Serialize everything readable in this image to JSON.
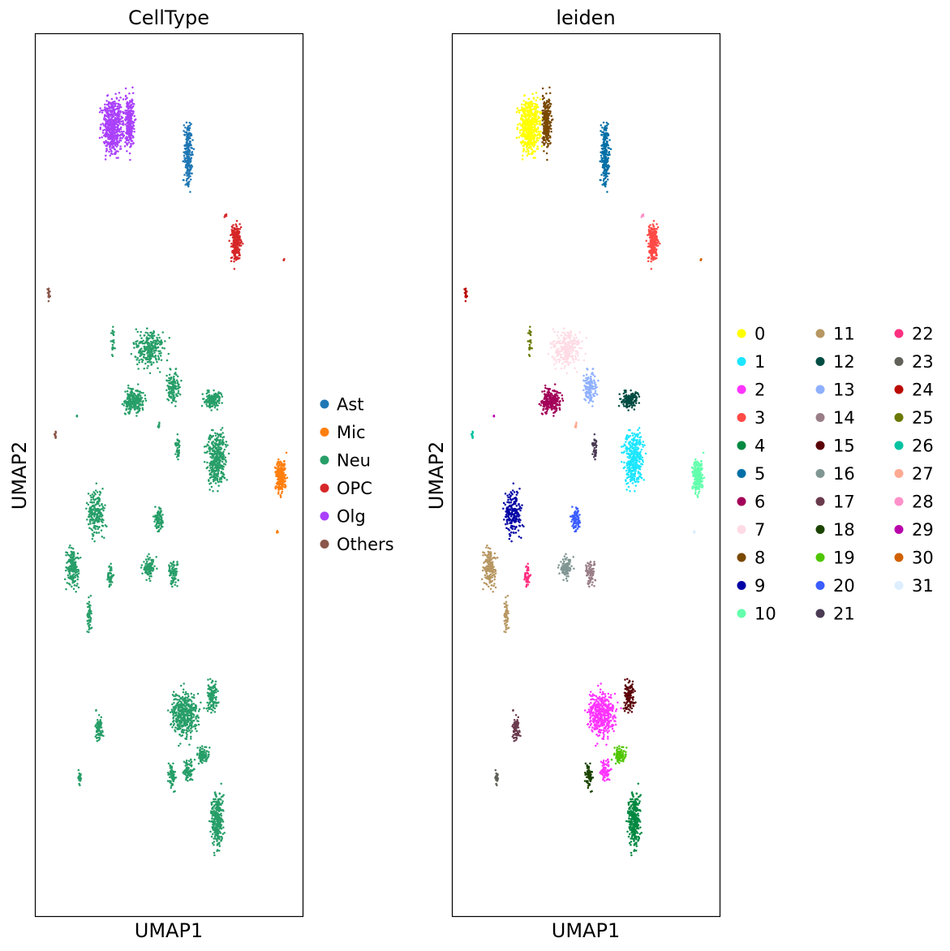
{
  "figure": {
    "background": "#ffffff"
  },
  "chart_data": [
    {
      "type": "scatter",
      "title": "CellType",
      "xlabel": "UMAP1",
      "ylabel": "UMAP2",
      "grid": false,
      "ticks": false,
      "legend_placement": "right",
      "point_color_by": "CellType",
      "categories": [
        {
          "name": "Ast",
          "color": "#1f77b4"
        },
        {
          "name": "Mic",
          "color": "#ff7f0e"
        },
        {
          "name": "Neu",
          "color": "#279e68"
        },
        {
          "name": "OPC",
          "color": "#d62728"
        },
        {
          "name": "Olg",
          "color": "#aa40fc"
        },
        {
          "name": "Others",
          "color": "#8c564b"
        }
      ]
    },
    {
      "type": "scatter",
      "title": "leiden",
      "xlabel": "UMAP1",
      "ylabel": "UMAP2",
      "grid": false,
      "ticks": false,
      "legend_placement": "right",
      "point_color_by": "leiden",
      "categories": [
        {
          "name": "0",
          "color": "#ffff00"
        },
        {
          "name": "1",
          "color": "#1ce6ff"
        },
        {
          "name": "2",
          "color": "#ff34ff"
        },
        {
          "name": "3",
          "color": "#ff4a46"
        },
        {
          "name": "4",
          "color": "#008941"
        },
        {
          "name": "5",
          "color": "#006fa6"
        },
        {
          "name": "6",
          "color": "#a30059"
        },
        {
          "name": "7",
          "color": "#ffdbe5"
        },
        {
          "name": "8",
          "color": "#7a4900"
        },
        {
          "name": "9",
          "color": "#0000a6"
        },
        {
          "name": "10",
          "color": "#63ffac"
        },
        {
          "name": "11",
          "color": "#b79762"
        },
        {
          "name": "12",
          "color": "#004d43"
        },
        {
          "name": "13",
          "color": "#8fb0ff"
        },
        {
          "name": "14",
          "color": "#997d87"
        },
        {
          "name": "15",
          "color": "#5a0007"
        },
        {
          "name": "16",
          "color": "#809693"
        },
        {
          "name": "17",
          "color": "#6a3a4c"
        },
        {
          "name": "18",
          "color": "#1b4400"
        },
        {
          "name": "19",
          "color": "#4fc601"
        },
        {
          "name": "20",
          "color": "#3b5dff"
        },
        {
          "name": "21",
          "color": "#4a3b53"
        },
        {
          "name": "22",
          "color": "#ff2f80"
        },
        {
          "name": "23",
          "color": "#61615a"
        },
        {
          "name": "24",
          "color": "#ba0900"
        },
        {
          "name": "25",
          "color": "#6b7900"
        },
        {
          "name": "26",
          "color": "#00c2a0"
        },
        {
          "name": "27",
          "color": "#ffaa92"
        },
        {
          "name": "28",
          "color": "#ff90c9"
        },
        {
          "name": "29",
          "color": "#b903aa"
        },
        {
          "name": "30",
          "color": "#d16100"
        },
        {
          "name": "31",
          "color": "#ddefff"
        }
      ],
      "legend_columns": 3
    }
  ]
}
